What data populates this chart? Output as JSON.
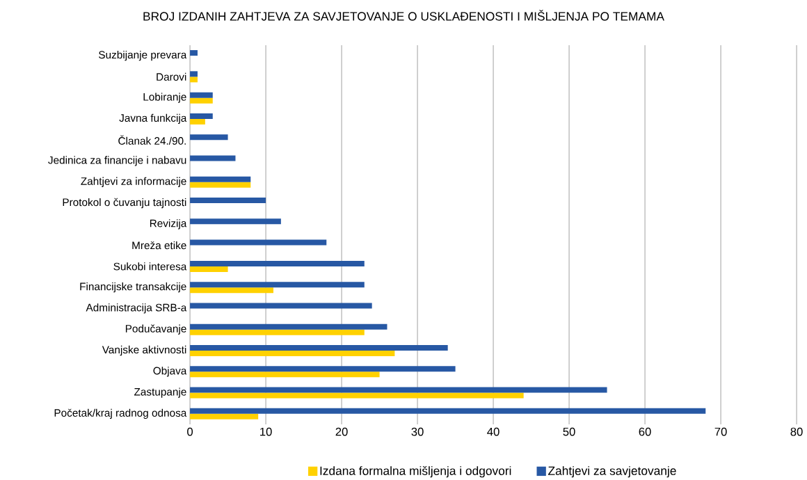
{
  "chart_data": {
    "type": "bar",
    "orientation": "horizontal",
    "title": "BROJ IZDANIH ZAHTJEVA ZA SAVJETOVANJE O USKLAĐENOSTI I MIŠLJENJA PO TEMAMA",
    "categories": [
      "Suzbijanje prevara",
      "Darovi",
      "Lobiranje",
      "Javna funkcija",
      "Članak 24./90.",
      "Jedinica za financije i nabavu",
      "Zahtjevi za informacije",
      "Protokol o čuvanju tajnosti",
      "Revizija",
      "Mreža etike",
      "Sukobi interesa",
      "Financijske transakcije",
      "Administracija SRB-a",
      "Podučavanje",
      "Vanjske aktivnosti",
      "Objava",
      "Zastupanje",
      "Početak/kraj radnog odnosa"
    ],
    "series": [
      {
        "name": "Izdana formalna mišljenja i odgovori",
        "color": "#ffd100",
        "values": [
          null,
          1,
          3,
          2,
          null,
          null,
          8,
          null,
          null,
          null,
          5,
          11,
          null,
          23,
          27,
          25,
          44,
          9
        ]
      },
      {
        "name": "Zahtjevi za savjetovanje",
        "color": "#2758a4",
        "values": [
          1,
          1,
          3,
          3,
          5,
          6,
          8,
          10,
          12,
          18,
          23,
          23,
          24,
          26,
          34,
          35,
          55,
          68
        ]
      }
    ],
    "xlim": [
      0,
      80
    ],
    "xticks": [
      0,
      10,
      20,
      30,
      40,
      50,
      60,
      70,
      80
    ],
    "grid": "x",
    "legend": "bottom"
  }
}
